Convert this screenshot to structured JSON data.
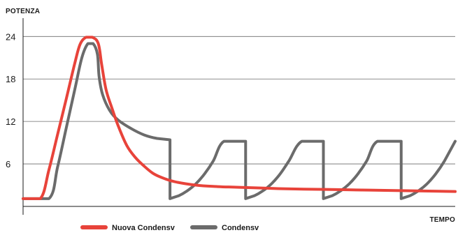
{
  "chart_data": {
    "type": "line",
    "ylabel": "POTENZA",
    "xlabel": "TEMPO",
    "yticks": [
      6,
      12,
      18,
      24
    ],
    "ylim": [
      0,
      26
    ],
    "xlim": [
      0,
      100
    ],
    "grid": true,
    "legend_position": "bottom",
    "series": [
      {
        "name": "Nuova Condensv",
        "color": "#e8433a",
        "points": [
          [
            0,
            1.1
          ],
          [
            4,
            1.1
          ],
          [
            6,
            5.2
          ],
          [
            8,
            10.2
          ],
          [
            10,
            15.2
          ],
          [
            12,
            20.3
          ],
          [
            13.2,
            22.9
          ],
          [
            14.6,
            23.9
          ],
          [
            16,
            23.9
          ],
          [
            17.4,
            23
          ],
          [
            18.2,
            20
          ],
          [
            19.2,
            16.5
          ],
          [
            20.5,
            14
          ],
          [
            22,
            11.4
          ],
          [
            24,
            8.6
          ],
          [
            26,
            6.9
          ],
          [
            28,
            5.7
          ],
          [
            30,
            4.7
          ],
          [
            32,
            4.1
          ],
          [
            35,
            3.5
          ],
          [
            40,
            3
          ],
          [
            45,
            2.8
          ],
          [
            50,
            2.7
          ],
          [
            60,
            2.5
          ],
          [
            70,
            2.4
          ],
          [
            80,
            2.3
          ],
          [
            90,
            2.2
          ],
          [
            100,
            2.1
          ]
        ]
      },
      {
        "name": "Condensv",
        "color": "#6b6b6b",
        "points": [
          [
            0,
            1.1
          ],
          [
            6,
            1.1
          ],
          [
            8,
            5.6
          ],
          [
            10,
            11.1
          ],
          [
            12,
            16.6
          ],
          [
            13.6,
            21
          ],
          [
            15,
            23
          ],
          [
            16.2,
            23
          ],
          [
            17.2,
            21.5
          ],
          [
            17.6,
            18.3
          ],
          [
            18.4,
            15.8
          ],
          [
            20,
            13.6
          ],
          [
            22,
            12.2
          ],
          [
            25,
            11
          ],
          [
            28,
            10.1
          ],
          [
            31,
            9.6
          ],
          [
            34,
            9.4
          ],
          [
            34,
            1.1
          ],
          [
            36,
            1.5
          ],
          [
            38,
            2.2
          ],
          [
            40,
            3.2
          ],
          [
            42,
            4.6
          ],
          [
            44,
            6.4
          ],
          [
            46.5,
            9.2
          ],
          [
            51.5,
            9.2
          ],
          [
            51.5,
            1.1
          ],
          [
            53.5,
            1.5
          ],
          [
            55.5,
            2.2
          ],
          [
            57.5,
            3.2
          ],
          [
            59.5,
            4.6
          ],
          [
            61.5,
            6.4
          ],
          [
            64.5,
            9.2
          ],
          [
            69.5,
            9.2
          ],
          [
            69.5,
            1.1
          ],
          [
            71.5,
            1.5
          ],
          [
            73.5,
            2.2
          ],
          [
            75.5,
            3.2
          ],
          [
            77.5,
            4.6
          ],
          [
            79.5,
            6.4
          ],
          [
            82,
            9.2
          ],
          [
            87.5,
            9.2
          ],
          [
            87.5,
            1.1
          ],
          [
            89.5,
            1.5
          ],
          [
            91.5,
            2.2
          ],
          [
            93.5,
            3.2
          ],
          [
            95.5,
            4.6
          ],
          [
            97.5,
            6.4
          ],
          [
            100,
            9.2
          ]
        ]
      }
    ]
  }
}
